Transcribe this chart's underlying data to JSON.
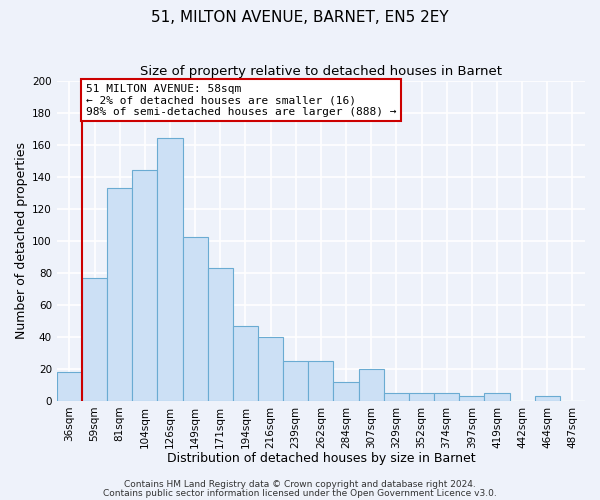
{
  "title": "51, MILTON AVENUE, BARNET, EN5 2EY",
  "subtitle": "Size of property relative to detached houses in Barnet",
  "xlabel": "Distribution of detached houses by size in Barnet",
  "ylabel": "Number of detached properties",
  "categories": [
    "36sqm",
    "59sqm",
    "81sqm",
    "104sqm",
    "126sqm",
    "149sqm",
    "171sqm",
    "194sqm",
    "216sqm",
    "239sqm",
    "262sqm",
    "284sqm",
    "307sqm",
    "329sqm",
    "352sqm",
    "374sqm",
    "397sqm",
    "419sqm",
    "442sqm",
    "464sqm",
    "487sqm"
  ],
  "values": [
    18,
    77,
    133,
    144,
    164,
    102,
    83,
    47,
    40,
    25,
    25,
    12,
    20,
    5,
    5,
    5,
    3,
    5,
    0,
    3,
    0
  ],
  "bar_color": "#cce0f5",
  "bar_edge_color": "#6aabd2",
  "ylim": [
    0,
    200
  ],
  "yticks": [
    0,
    20,
    40,
    60,
    80,
    100,
    120,
    140,
    160,
    180,
    200
  ],
  "property_label": "51 MILTON AVENUE: 58sqm",
  "pct_smaller": "2%",
  "num_smaller": 16,
  "pct_larger": "98%",
  "num_larger": 888,
  "vline_x_index": 1,
  "vline_color": "#cc0000",
  "annotation_box_color": "#cc0000",
  "footer1": "Contains HM Land Registry data © Crown copyright and database right 2024.",
  "footer2": "Contains public sector information licensed under the Open Government Licence v3.0.",
  "background_color": "#eef2fa",
  "grid_color": "#ffffff",
  "title_fontsize": 11,
  "subtitle_fontsize": 9.5,
  "label_fontsize": 9,
  "tick_fontsize": 7.5,
  "footer_fontsize": 6.5,
  "annotation_fontsize": 8
}
